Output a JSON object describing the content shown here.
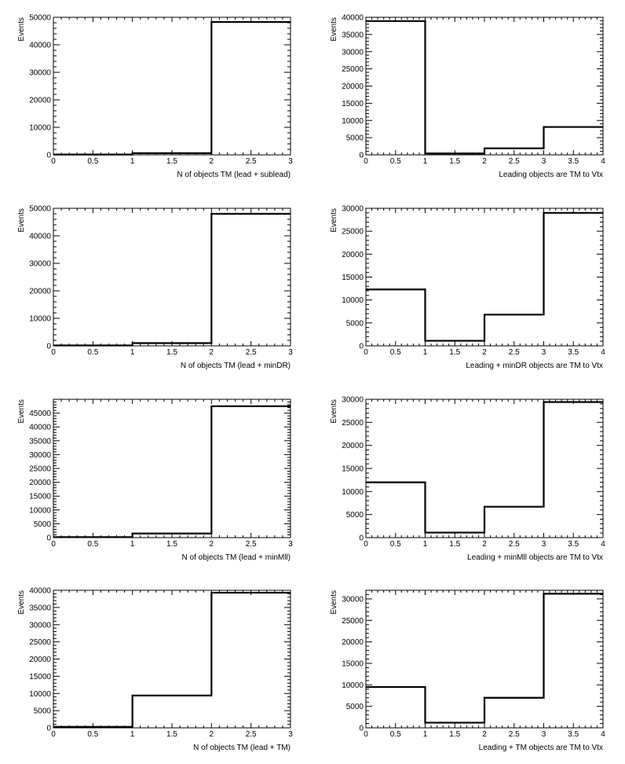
{
  "chart_data": [
    {
      "type": "step-histogram",
      "xlabel": "N of objects TM (lead + sublead)",
      "ylabel": "Events",
      "xlim": [
        0,
        3
      ],
      "ylim": [
        0,
        50000
      ],
      "xticks": [
        "0",
        "0.5",
        "1",
        "1.5",
        "2",
        "2.5",
        "3"
      ],
      "yticks": [
        "0",
        "10000",
        "20000",
        "30000",
        "40000",
        "50000"
      ],
      "bins": [
        0,
        1,
        2,
        3
      ],
      "values": [
        100,
        600,
        48300
      ]
    },
    {
      "type": "step-histogram",
      "xlabel": "Leading objects are TM to Vtx",
      "ylabel": "Events",
      "xlim": [
        0,
        4
      ],
      "ylim": [
        0,
        40000
      ],
      "xticks": [
        "0",
        "0.5",
        "1",
        "1.5",
        "2",
        "2.5",
        "3",
        "3.5",
        "4"
      ],
      "yticks": [
        "0",
        "5000",
        "10000",
        "15000",
        "20000",
        "25000",
        "30000",
        "35000",
        "40000"
      ],
      "bins": [
        0,
        1,
        2,
        3,
        4
      ],
      "values": [
        38900,
        400,
        1900,
        8100
      ]
    },
    {
      "type": "step-histogram",
      "xlabel": "N of objects TM (lead + minDR)",
      "ylabel": "Events",
      "xlim": [
        0,
        3
      ],
      "ylim": [
        0,
        50000
      ],
      "xticks": [
        "0",
        "0.5",
        "1",
        "1.5",
        "2",
        "2.5",
        "3"
      ],
      "yticks": [
        "0",
        "10000",
        "20000",
        "30000",
        "40000",
        "50000"
      ],
      "bins": [
        0,
        1,
        2,
        3
      ],
      "values": [
        150,
        1000,
        48000
      ]
    },
    {
      "type": "step-histogram",
      "xlabel": "Leading + minDR objects are TM to Vtx",
      "ylabel": "Events",
      "xlim": [
        0,
        4
      ],
      "ylim": [
        0,
        30000
      ],
      "xticks": [
        "0",
        "0.5",
        "1",
        "1.5",
        "2",
        "2.5",
        "3",
        "3.5",
        "4"
      ],
      "yticks": [
        "0",
        "5000",
        "10000",
        "15000",
        "20000",
        "25000",
        "30000"
      ],
      "bins": [
        0,
        1,
        2,
        3,
        4
      ],
      "values": [
        12300,
        1100,
        6800,
        29000
      ]
    },
    {
      "type": "step-histogram",
      "xlabel": "N of objects TM (lead + minMll)",
      "ylabel": "Events",
      "xlim": [
        0,
        3
      ],
      "ylim": [
        0,
        50000
      ],
      "xticks": [
        "0",
        "0.5",
        "1",
        "1.5",
        "2",
        "2.5",
        "3"
      ],
      "yticks": [
        "0",
        "5000",
        "10000",
        "15000",
        "20000",
        "25000",
        "30000",
        "35000",
        "40000",
        "45000"
      ],
      "bins": [
        0,
        1,
        2,
        3
      ],
      "values": [
        200,
        1500,
        47500
      ]
    },
    {
      "type": "step-histogram",
      "xlabel": "Leading + minMll objects are TM to Vtx",
      "ylabel": "Events",
      "xlim": [
        0,
        4
      ],
      "ylim": [
        0,
        30000
      ],
      "xticks": [
        "0",
        "0.5",
        "1",
        "1.5",
        "2",
        "2.5",
        "3",
        "3.5",
        "4"
      ],
      "yticks": [
        "0",
        "5000",
        "10000",
        "15000",
        "20000",
        "25000",
        "30000"
      ],
      "bins": [
        0,
        1,
        2,
        3,
        4
      ],
      "values": [
        12000,
        1100,
        6700,
        29400
      ]
    },
    {
      "type": "step-histogram",
      "xlabel": "N of objects TM (lead + TM)",
      "ylabel": "Events",
      "xlim": [
        0,
        3
      ],
      "ylim": [
        0,
        40000
      ],
      "xticks": [
        "0",
        "0.5",
        "1",
        "1.5",
        "2",
        "2.5",
        "3"
      ],
      "yticks": [
        "0",
        "5000",
        "10000",
        "15000",
        "20000",
        "25000",
        "30000",
        "35000",
        "40000"
      ],
      "bins": [
        0,
        1,
        2,
        3
      ],
      "values": [
        300,
        9400,
        39300
      ]
    },
    {
      "type": "step-histogram",
      "xlabel": "Leading + TM objects are TM to Vtx",
      "ylabel": "Events",
      "xlim": [
        0,
        4
      ],
      "ylim": [
        0,
        32000
      ],
      "xticks": [
        "0",
        "0.5",
        "1",
        "1.5",
        "2",
        "2.5",
        "3",
        "3.5",
        "4"
      ],
      "yticks": [
        "0",
        "5000",
        "10000",
        "15000",
        "20000",
        "25000",
        "30000"
      ],
      "bins": [
        0,
        1,
        2,
        3,
        4
      ],
      "values": [
        9500,
        1200,
        7000,
        31200
      ]
    }
  ]
}
